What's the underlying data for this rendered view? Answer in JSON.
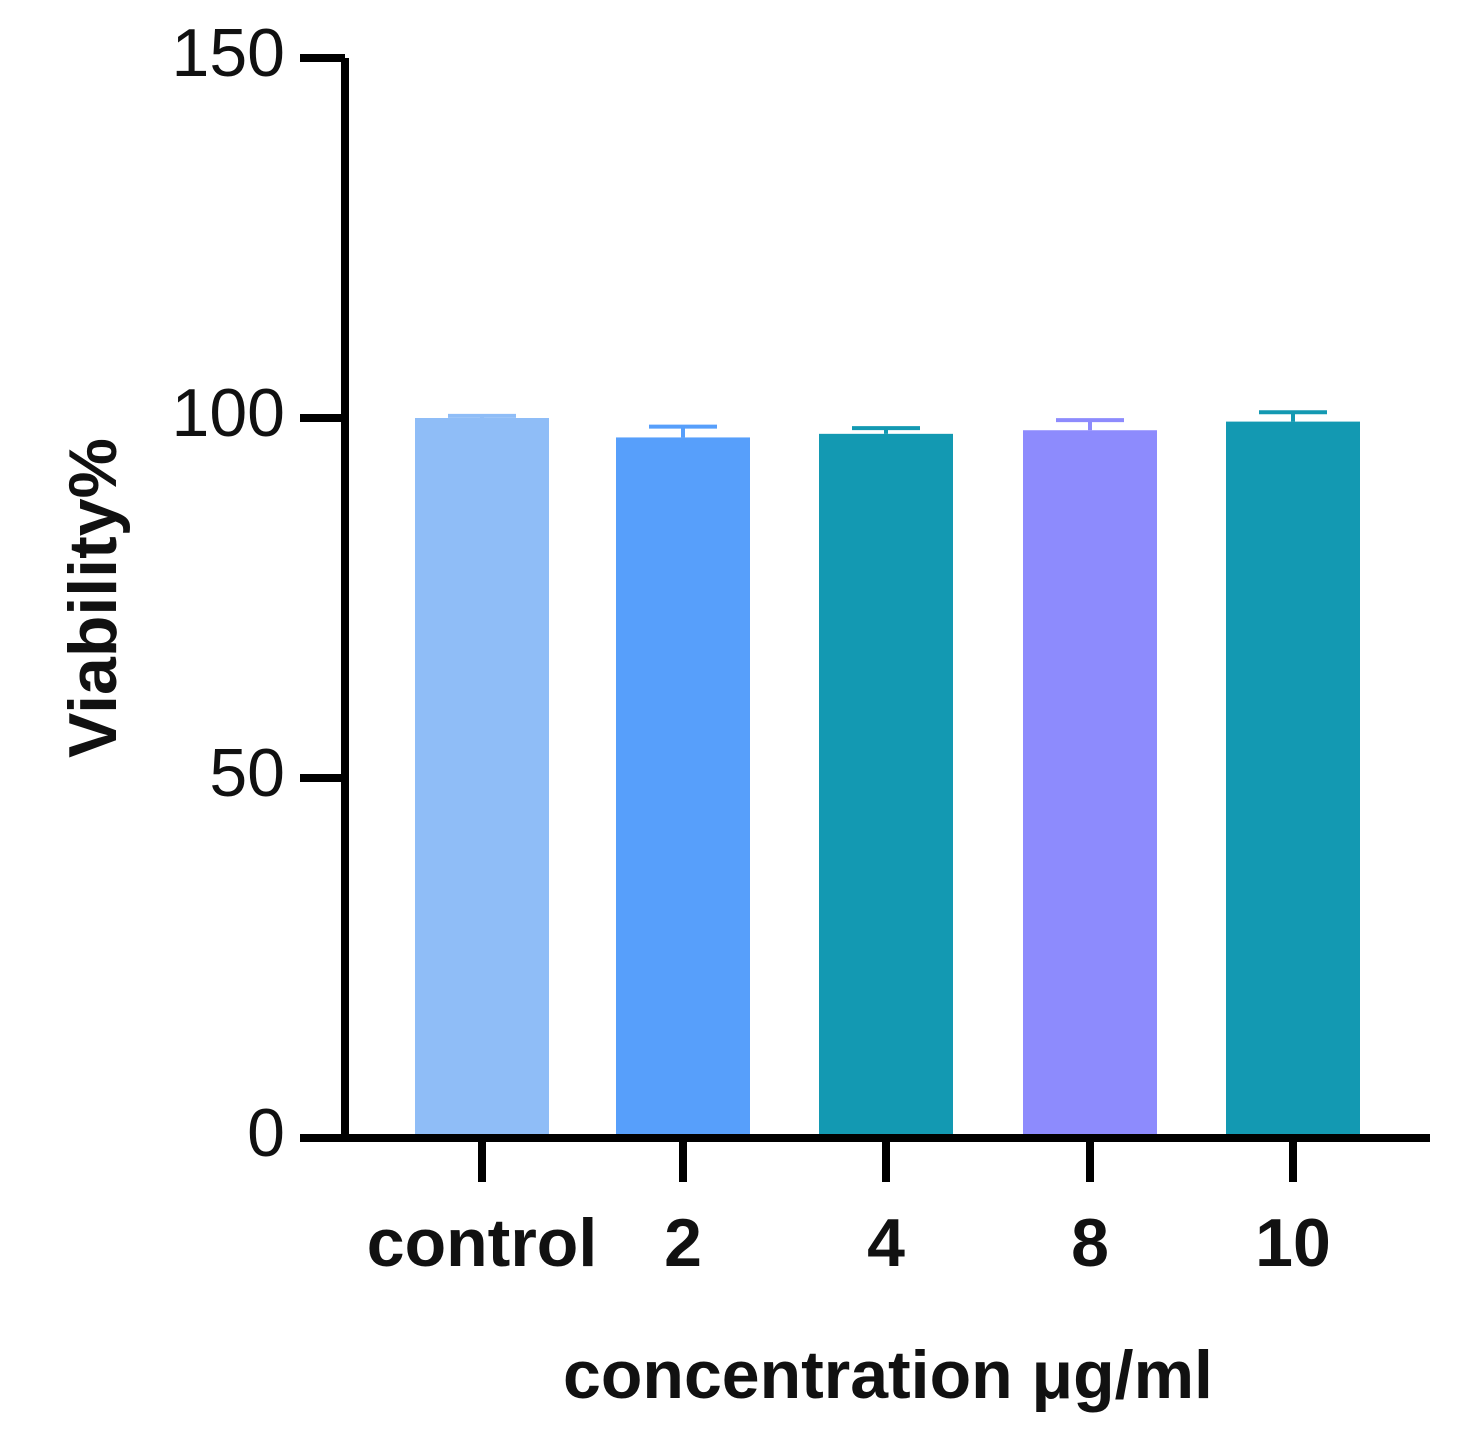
{
  "chart_data": {
    "type": "bar",
    "categories": [
      "control",
      "2",
      "4",
      "8",
      "10"
    ],
    "values": [
      100,
      97.3,
      97.8,
      98.3,
      99.5
    ],
    "errors": [
      0.3,
      1.5,
      0.8,
      1.4,
      1.3
    ],
    "colors": [
      "#8fbdf7",
      "#579ffb",
      "#1399b2",
      "#8d8bfd",
      "#1399b2"
    ],
    "xlabel": "concentration μg/ml",
    "ylabel": "Viability%",
    "ylim": [
      0,
      150
    ],
    "yticks": [
      "0",
      "50",
      "100",
      "150"
    ],
    "grid": false
  }
}
